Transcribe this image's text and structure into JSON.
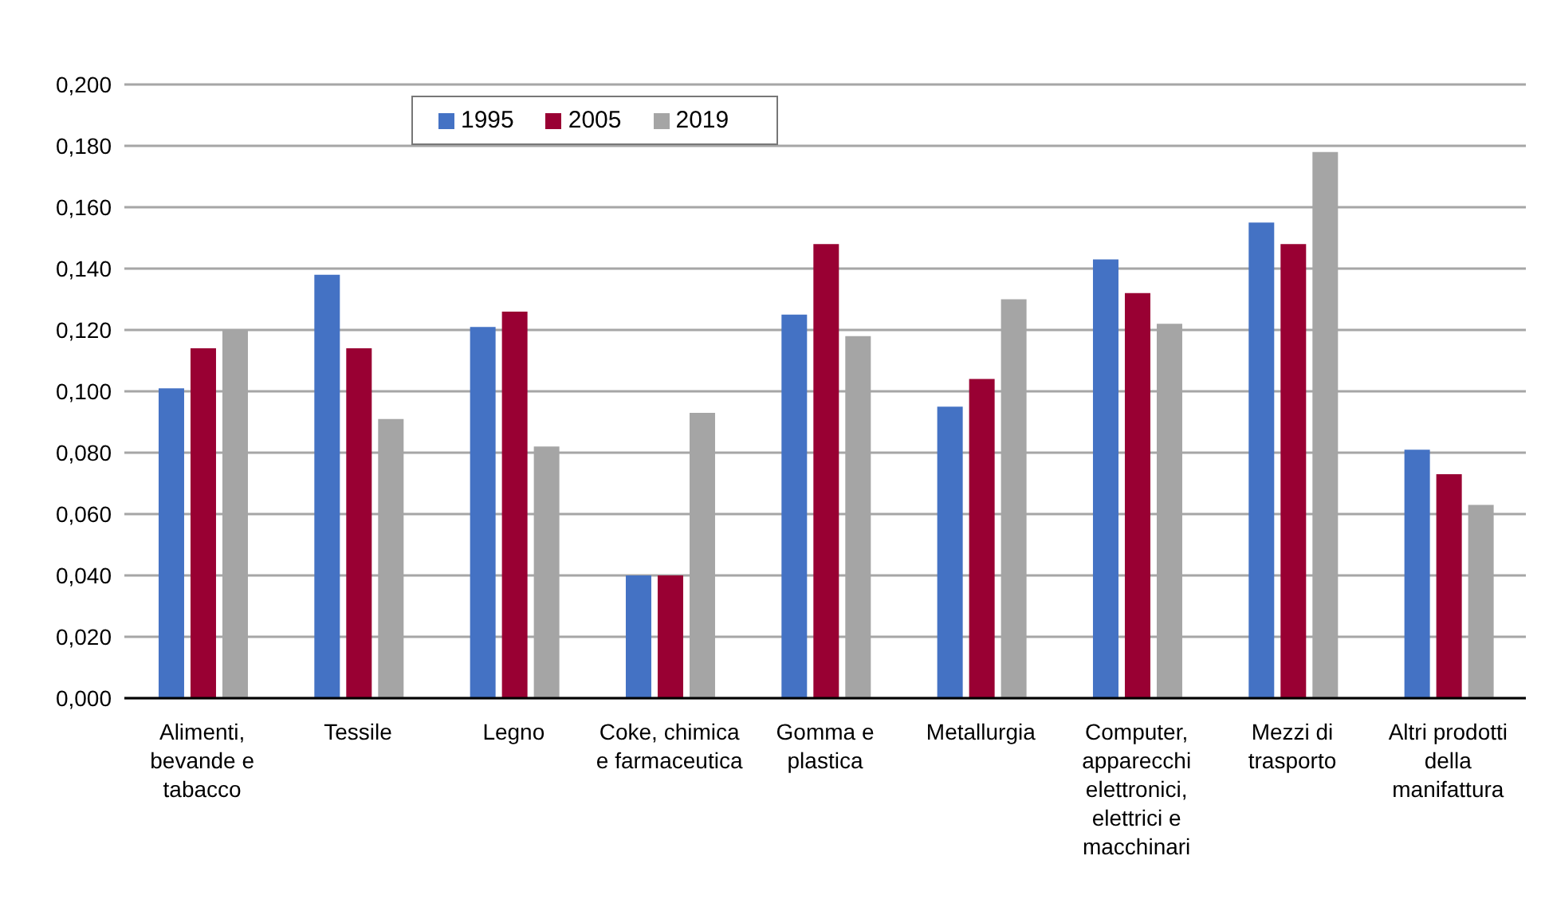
{
  "chart_data": {
    "type": "bar",
    "categories": [
      "Alimenti, bevande e tabacco",
      "Tessile",
      "Legno",
      "Coke, chimica e farmaceutica",
      "Gomma e plastica",
      "Metallurgia",
      "Computer, apparecchi elettronici, elettrici e macchinari",
      "Mezzi di trasporto",
      "Altri prodotti della manifattura"
    ],
    "series": [
      {
        "name": "1995",
        "color": "#4472c4",
        "values": [
          0.101,
          0.138,
          0.121,
          0.04,
          0.125,
          0.095,
          0.143,
          0.155,
          0.081
        ]
      },
      {
        "name": "2005",
        "color": "#990033",
        "values": [
          0.114,
          0.114,
          0.126,
          0.04,
          0.148,
          0.104,
          0.132,
          0.148,
          0.073
        ]
      },
      {
        "name": "2019",
        "color": "#a5a5a5",
        "values": [
          0.12,
          0.091,
          0.082,
          0.093,
          0.118,
          0.13,
          0.122,
          0.178,
          0.063
        ]
      }
    ],
    "ylim": [
      0,
      0.2
    ],
    "yticks": [
      {
        "value": 0,
        "label": "0,000"
      },
      {
        "value": 0.02,
        "label": "0,020"
      },
      {
        "value": 0.04,
        "label": "0,040"
      },
      {
        "value": 0.06,
        "label": "0,060"
      },
      {
        "value": 0.08,
        "label": "0,080"
      },
      {
        "value": 0.1,
        "label": "0,100"
      },
      {
        "value": 0.12,
        "label": "0,120"
      },
      {
        "value": 0.14,
        "label": "0,140"
      },
      {
        "value": 0.16,
        "label": "0,160"
      },
      {
        "value": 0.18,
        "label": "0,180"
      },
      {
        "value": 0.2,
        "label": "0,200"
      }
    ],
    "grid": "y",
    "legend": "top"
  }
}
